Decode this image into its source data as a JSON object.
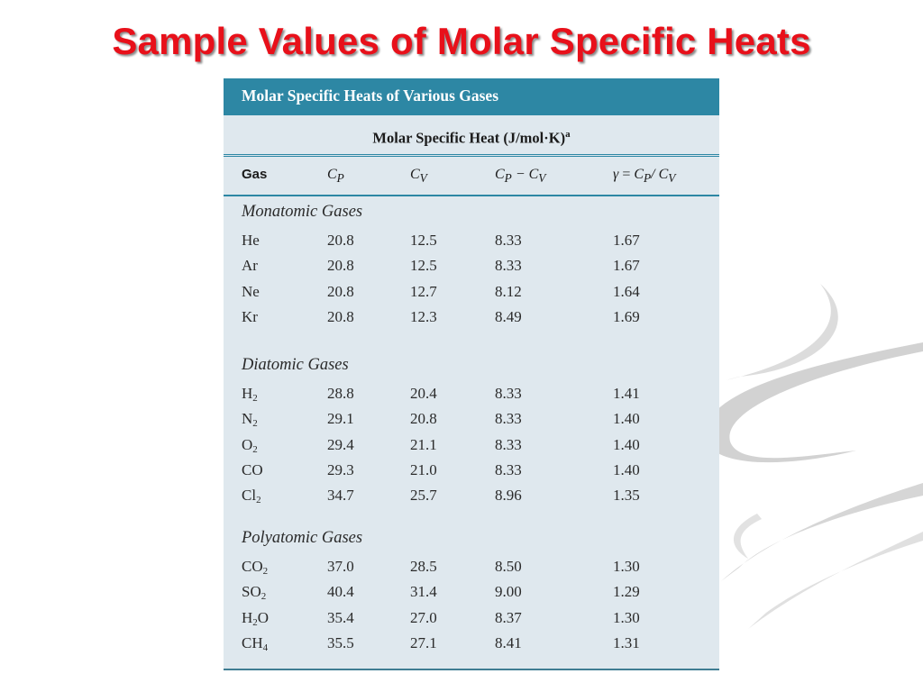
{
  "slide": {
    "title": "Sample Values of Molar Specific Heats"
  },
  "table": {
    "title": "Molar Specific Heats of Various Gases",
    "unit_label": "Molar Specific Heat (J/mol·K)",
    "unit_superscript": "a",
    "columns": [
      "Gas",
      "CP",
      "CV",
      "CP − CV",
      "γ = CP/CV"
    ],
    "sections": [
      {
        "heading": "Monatomic Gases",
        "rows": [
          {
            "gas": "He",
            "cp": "20.8",
            "cv": "12.5",
            "diff": "8.33",
            "gamma": "1.67"
          },
          {
            "gas": "Ar",
            "cp": "20.8",
            "cv": "12.5",
            "diff": "8.33",
            "gamma": "1.67"
          },
          {
            "gas": "Ne",
            "cp": "20.8",
            "cv": "12.7",
            "diff": "8.12",
            "gamma": "1.64"
          },
          {
            "gas": "Kr",
            "cp": "20.8",
            "cv": "12.3",
            "diff": "8.49",
            "gamma": "1.69"
          }
        ]
      },
      {
        "heading": "Diatomic Gases",
        "rows": [
          {
            "gas": "H2",
            "cp": "28.8",
            "cv": "20.4",
            "diff": "8.33",
            "gamma": "1.41"
          },
          {
            "gas": "N2",
            "cp": "29.1",
            "cv": "20.8",
            "diff": "8.33",
            "gamma": "1.40"
          },
          {
            "gas": "O2",
            "cp": "29.4",
            "cv": "21.1",
            "diff": "8.33",
            "gamma": "1.40"
          },
          {
            "gas": "CO",
            "cp": "29.3",
            "cv": "21.0",
            "diff": "8.33",
            "gamma": "1.40"
          },
          {
            "gas": "Cl2",
            "cp": "34.7",
            "cv": "25.7",
            "diff": "8.96",
            "gamma": "1.35"
          }
        ]
      },
      {
        "heading": "Polyatomic Gases",
        "rows": [
          {
            "gas": "CO2",
            "cp": "37.0",
            "cv": "28.5",
            "diff": "8.50",
            "gamma": "1.30"
          },
          {
            "gas": "SO2",
            "cp": "40.4",
            "cv": "31.4",
            "diff": "9.00",
            "gamma": "1.29"
          },
          {
            "gas": "H2O",
            "cp": "35.4",
            "cv": "27.0",
            "diff": "8.37",
            "gamma": "1.30"
          },
          {
            "gas": "CH4",
            "cp": "35.5",
            "cv": "27.1",
            "diff": "8.41",
            "gamma": "1.31"
          }
        ]
      }
    ]
  },
  "colors": {
    "title_red": "#e8101a",
    "table_header_blue": "#2d87a4",
    "table_background": "#dfe8ee"
  }
}
